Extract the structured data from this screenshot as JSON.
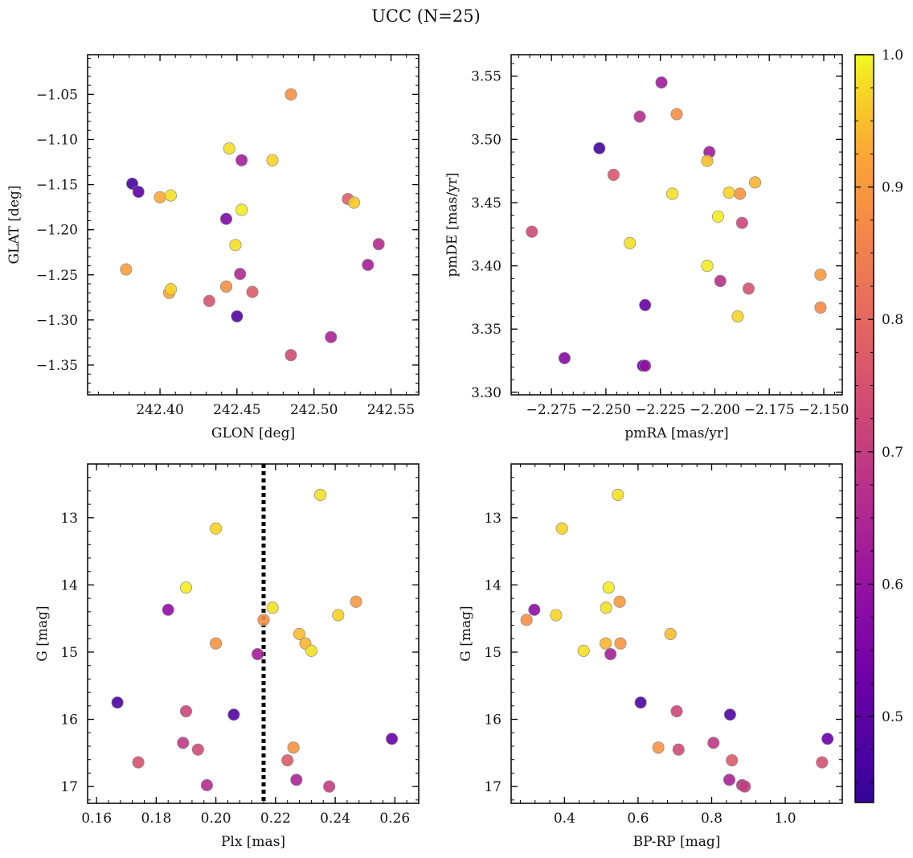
{
  "figure": {
    "title": "UCC (N=25)",
    "colorbar": {
      "min": 0.435,
      "max": 1.0,
      "ticks": [
        0.5,
        0.6,
        0.7,
        0.8,
        0.9,
        1.0
      ],
      "tick_labels": [
        "0.5",
        "0.6",
        "0.7",
        "0.8",
        "0.9",
        "1.0"
      ],
      "colormap": "plasma"
    }
  },
  "chart_data": [
    {
      "id": "glon-glat",
      "type": "scatter",
      "xlabel": "GLON [deg]",
      "ylabel": "GLAT [deg]",
      "xlim": [
        242.353,
        242.568
      ],
      "ylim": [
        -1.383,
        -1.006
      ],
      "xticks": [
        242.4,
        242.45,
        242.5,
        242.55
      ],
      "xtick_labels": [
        "242.40",
        "242.45",
        "242.50",
        "242.55"
      ],
      "yticks": [
        -1.05,
        -1.1,
        -1.15,
        -1.2,
        -1.25,
        -1.3,
        -1.35
      ],
      "ytick_labels": [
        "−1.05",
        "−1.10",
        "−1.15",
        "−1.20",
        "−1.25",
        "−1.30",
        "−1.35"
      ],
      "inverted_y": false,
      "points": [
        {
          "x": 242.485,
          "y": -1.05,
          "c": 0.88
        },
        {
          "x": 242.445,
          "y": -1.11,
          "c": 0.98
        },
        {
          "x": 242.473,
          "y": -1.123,
          "c": 0.97
        },
        {
          "x": 242.453,
          "y": -1.123,
          "c": 0.63
        },
        {
          "x": 242.382,
          "y": -1.149,
          "c": 0.46
        },
        {
          "x": 242.386,
          "y": -1.158,
          "c": 0.5
        },
        {
          "x": 242.4,
          "y": -1.164,
          "c": 0.93
        },
        {
          "x": 242.407,
          "y": -1.162,
          "c": 0.98
        },
        {
          "x": 242.522,
          "y": -1.166,
          "c": 0.78
        },
        {
          "x": 242.526,
          "y": -1.17,
          "c": 0.96
        },
        {
          "x": 242.453,
          "y": -1.178,
          "c": 0.99
        },
        {
          "x": 242.443,
          "y": -1.188,
          "c": 0.56
        },
        {
          "x": 242.449,
          "y": -1.217,
          "c": 0.98
        },
        {
          "x": 242.542,
          "y": -1.216,
          "c": 0.66
        },
        {
          "x": 242.535,
          "y": -1.239,
          "c": 0.63
        },
        {
          "x": 242.378,
          "y": -1.244,
          "c": 0.91
        },
        {
          "x": 242.452,
          "y": -1.249,
          "c": 0.65
        },
        {
          "x": 242.407,
          "y": -1.266,
          "c": 0.97
        },
        {
          "x": 242.406,
          "y": -1.27,
          "c": 0.92
        },
        {
          "x": 242.443,
          "y": -1.263,
          "c": 0.88
        },
        {
          "x": 242.46,
          "y": -1.269,
          "c": 0.77
        },
        {
          "x": 242.432,
          "y": -1.279,
          "c": 0.75
        },
        {
          "x": 242.45,
          "y": -1.296,
          "c": 0.48
        },
        {
          "x": 242.511,
          "y": -1.319,
          "c": 0.64
        },
        {
          "x": 242.485,
          "y": -1.339,
          "c": 0.73
        }
      ]
    },
    {
      "id": "pmra-pmde",
      "type": "scatter",
      "xlabel": "pmRA [mas/yr]",
      "ylabel": "pmDE [mas/yr]",
      "xlim": [
        -2.2935,
        -2.1415
      ],
      "ylim": [
        3.298,
        3.567
      ],
      "xticks": [
        -2.275,
        -2.25,
        -2.225,
        -2.2,
        -2.175,
        -2.15
      ],
      "xtick_labels": [
        "−2.275",
        "−2.250",
        "−2.225",
        "−2.200",
        "−2.175",
        "−2.150"
      ],
      "yticks": [
        3.3,
        3.35,
        3.4,
        3.45,
        3.5,
        3.55
      ],
      "ytick_labels": [
        "3.30",
        "3.35",
        "3.40",
        "3.45",
        "3.50",
        "3.55"
      ],
      "inverted_y": false,
      "points": [
        {
          "x": -2.2245,
          "y": 3.545,
          "c": 0.62
        },
        {
          "x": -2.2345,
          "y": 3.518,
          "c": 0.66
        },
        {
          "x": -2.2175,
          "y": 3.52,
          "c": 0.88
        },
        {
          "x": -2.253,
          "y": 3.493,
          "c": 0.46
        },
        {
          "x": -2.2025,
          "y": 3.49,
          "c": 0.62
        },
        {
          "x": -2.2035,
          "y": 3.483,
          "c": 0.95
        },
        {
          "x": -2.2465,
          "y": 3.472,
          "c": 0.76
        },
        {
          "x": -2.1815,
          "y": 3.466,
          "c": 0.94
        },
        {
          "x": -2.2195,
          "y": 3.457,
          "c": 0.98
        },
        {
          "x": -2.1935,
          "y": 3.458,
          "c": 0.97
        },
        {
          "x": -2.1885,
          "y": 3.457,
          "c": 0.89
        },
        {
          "x": -2.1985,
          "y": 3.439,
          "c": 0.99
        },
        {
          "x": -2.1875,
          "y": 3.434,
          "c": 0.72
        },
        {
          "x": -2.284,
          "y": 3.427,
          "c": 0.73
        },
        {
          "x": -2.239,
          "y": 3.418,
          "c": 0.98
        },
        {
          "x": -2.2035,
          "y": 3.4,
          "c": 0.99
        },
        {
          "x": -2.1515,
          "y": 3.393,
          "c": 0.9
        },
        {
          "x": -2.1975,
          "y": 3.388,
          "c": 0.67
        },
        {
          "x": -2.1845,
          "y": 3.382,
          "c": 0.75
        },
        {
          "x": -2.232,
          "y": 3.369,
          "c": 0.52
        },
        {
          "x": -2.1515,
          "y": 3.367,
          "c": 0.87
        },
        {
          "x": -2.1895,
          "y": 3.36,
          "c": 0.97
        },
        {
          "x": -2.269,
          "y": 3.327,
          "c": 0.57
        },
        {
          "x": -2.233,
          "y": 3.321,
          "c": 0.48
        },
        {
          "x": -2.232,
          "y": 3.321,
          "c": 0.6
        }
      ]
    },
    {
      "id": "plx-g",
      "type": "scatter",
      "xlabel": "Plx [mas]",
      "ylabel": "G [mag]",
      "xlim": [
        0.157,
        0.268
      ],
      "ylim": [
        12.2,
        17.25
      ],
      "xticks": [
        0.16,
        0.18,
        0.2,
        0.22,
        0.24,
        0.26
      ],
      "xtick_labels": [
        "0.16",
        "0.18",
        "0.20",
        "0.22",
        "0.24",
        "0.26"
      ],
      "yticks": [
        13,
        14,
        15,
        16,
        17
      ],
      "ytick_labels": [
        "13",
        "14",
        "15",
        "16",
        "17"
      ],
      "inverted_y": true,
      "vline": 0.216,
      "points": [
        {
          "x": 0.235,
          "y": 12.66,
          "c": 0.98
        },
        {
          "x": 0.2,
          "y": 13.16,
          "c": 0.97
        },
        {
          "x": 0.19,
          "y": 14.04,
          "c": 0.99
        },
        {
          "x": 0.247,
          "y": 14.25,
          "c": 0.9
        },
        {
          "x": 0.219,
          "y": 14.34,
          "c": 0.98
        },
        {
          "x": 0.184,
          "y": 14.37,
          "c": 0.59
        },
        {
          "x": 0.241,
          "y": 14.45,
          "c": 0.97
        },
        {
          "x": 0.216,
          "y": 14.52,
          "c": 0.88
        },
        {
          "x": 0.228,
          "y": 14.73,
          "c": 0.95
        },
        {
          "x": 0.23,
          "y": 14.87,
          "c": 0.94
        },
        {
          "x": 0.2,
          "y": 14.87,
          "c": 0.89
        },
        {
          "x": 0.232,
          "y": 14.98,
          "c": 0.98
        },
        {
          "x": 0.214,
          "y": 15.03,
          "c": 0.63
        },
        {
          "x": 0.167,
          "y": 15.75,
          "c": 0.47
        },
        {
          "x": 0.19,
          "y": 15.88,
          "c": 0.72
        },
        {
          "x": 0.206,
          "y": 15.93,
          "c": 0.48
        },
        {
          "x": 0.259,
          "y": 16.29,
          "c": 0.52
        },
        {
          "x": 0.189,
          "y": 16.35,
          "c": 0.69
        },
        {
          "x": 0.226,
          "y": 16.42,
          "c": 0.89
        },
        {
          "x": 0.194,
          "y": 16.45,
          "c": 0.73
        },
        {
          "x": 0.224,
          "y": 16.61,
          "c": 0.77
        },
        {
          "x": 0.174,
          "y": 16.64,
          "c": 0.75
        },
        {
          "x": 0.227,
          "y": 16.9,
          "c": 0.64
        },
        {
          "x": 0.197,
          "y": 16.98,
          "c": 0.66
        },
        {
          "x": 0.238,
          "y": 17.0,
          "c": 0.7
        }
      ]
    },
    {
      "id": "bprp-g",
      "type": "scatter",
      "xlabel": "BP-RP [mag]",
      "ylabel": "G [mag]",
      "xlim": [
        0.255,
        1.155
      ],
      "ylim": [
        12.2,
        17.25
      ],
      "xticks": [
        0.4,
        0.6,
        0.8,
        1.0
      ],
      "xtick_labels": [
        "0.4",
        "0.6",
        "0.8",
        "1.0"
      ],
      "yticks": [
        13,
        14,
        15,
        16,
        17
      ],
      "ytick_labels": [
        "13",
        "14",
        "15",
        "16",
        "17"
      ],
      "inverted_y": true,
      "points": [
        {
          "x": 0.545,
          "y": 12.66,
          "c": 0.98
        },
        {
          "x": 0.393,
          "y": 13.16,
          "c": 0.97
        },
        {
          "x": 0.52,
          "y": 14.04,
          "c": 0.99
        },
        {
          "x": 0.55,
          "y": 14.25,
          "c": 0.9
        },
        {
          "x": 0.513,
          "y": 14.34,
          "c": 0.98
        },
        {
          "x": 0.318,
          "y": 14.37,
          "c": 0.59
        },
        {
          "x": 0.377,
          "y": 14.45,
          "c": 0.97
        },
        {
          "x": 0.297,
          "y": 14.52,
          "c": 0.88
        },
        {
          "x": 0.688,
          "y": 14.73,
          "c": 0.95
        },
        {
          "x": 0.512,
          "y": 14.87,
          "c": 0.94
        },
        {
          "x": 0.552,
          "y": 14.87,
          "c": 0.89
        },
        {
          "x": 0.452,
          "y": 14.98,
          "c": 0.98
        },
        {
          "x": 0.525,
          "y": 15.03,
          "c": 0.63
        },
        {
          "x": 0.607,
          "y": 15.75,
          "c": 0.47
        },
        {
          "x": 0.705,
          "y": 15.88,
          "c": 0.72
        },
        {
          "x": 0.85,
          "y": 15.93,
          "c": 0.48
        },
        {
          "x": 1.115,
          "y": 16.29,
          "c": 0.52
        },
        {
          "x": 0.805,
          "y": 16.35,
          "c": 0.69
        },
        {
          "x": 0.655,
          "y": 16.42,
          "c": 0.89
        },
        {
          "x": 0.71,
          "y": 16.45,
          "c": 0.73
        },
        {
          "x": 0.855,
          "y": 16.61,
          "c": 0.77
        },
        {
          "x": 1.1,
          "y": 16.64,
          "c": 0.75
        },
        {
          "x": 0.848,
          "y": 16.9,
          "c": 0.64
        },
        {
          "x": 0.883,
          "y": 16.98,
          "c": 0.66
        },
        {
          "x": 0.89,
          "y": 17.0,
          "c": 0.7
        }
      ]
    }
  ]
}
